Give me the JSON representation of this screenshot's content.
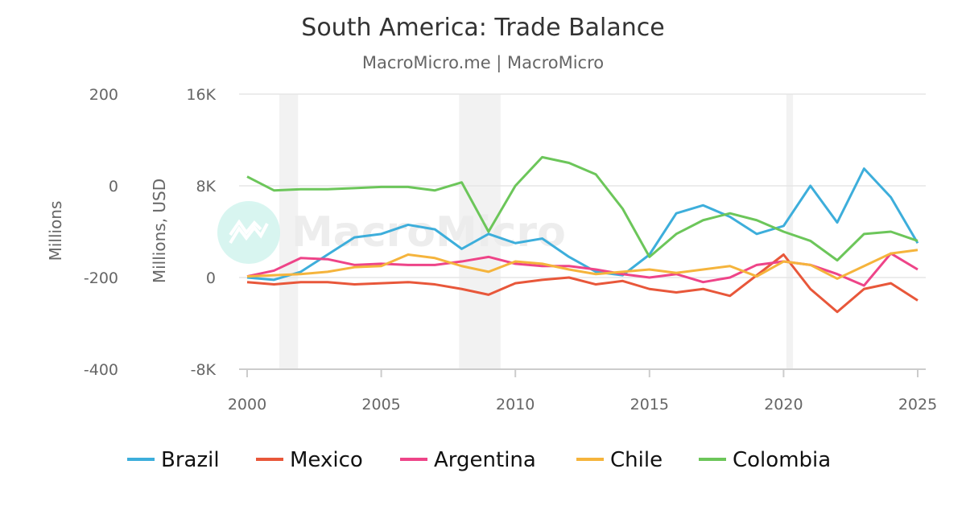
{
  "chart_data": {
    "type": "line",
    "title": "South America: Trade Balance",
    "subtitle": "MacroMicro.me | MacroMicro",
    "watermark": "MacroMicro",
    "x": [
      2000,
      2001,
      2002,
      2003,
      2004,
      2005,
      2006,
      2007,
      2008,
      2009,
      2010,
      2011,
      2012,
      2013,
      2014,
      2015,
      2016,
      2017,
      2018,
      2019,
      2020,
      2021,
      2022,
      2023,
      2024,
      2025
    ],
    "x_ticks": [
      "2000",
      "2005",
      "2010",
      "2015",
      "2020",
      "2025"
    ],
    "x_tick_values": [
      2000,
      2005,
      2010,
      2015,
      2020,
      2025
    ],
    "xlim": [
      2000,
      2025.3
    ],
    "y_axes": [
      {
        "label": "Millions",
        "ticks": [
          "200",
          "0",
          "-200",
          "-400"
        ],
        "tick_values": [
          200,
          0,
          -200,
          -400
        ],
        "ylim": [
          -400,
          200
        ]
      },
      {
        "label": "Millions, USD",
        "ticks": [
          "16K",
          "8K",
          "0",
          "-8K"
        ],
        "tick_values": [
          16000,
          8000,
          0,
          -8000
        ],
        "ylim": [
          -8000,
          16000
        ]
      }
    ],
    "grid": true,
    "legend_position": "bottom",
    "shaded_periods": [
      [
        2001.2,
        2001.9
      ],
      [
        2007.9,
        2009.45
      ],
      [
        2020.1,
        2020.35
      ]
    ],
    "series": [
      {
        "name": "Brazil",
        "color": "#3daedb",
        "values": [
          0,
          -200,
          500,
          2000,
          3500,
          3800,
          4600,
          4200,
          2500,
          3800,
          3000,
          3400,
          1800,
          500,
          200,
          2000,
          5600,
          6300,
          5300,
          3800,
          4500,
          8000,
          4800,
          9500,
          7000,
          3000
        ]
      },
      {
        "name": "Mexico",
        "color": "#e8573a",
        "values": [
          -400,
          -600,
          -400,
          -400,
          -600,
          -500,
          -400,
          -600,
          -1000,
          -1500,
          -500,
          -200,
          0,
          -600,
          -300,
          -1000,
          -1300,
          -1000,
          -1600,
          200,
          2000,
          -1000,
          -3000,
          -1000,
          -500,
          -2000
        ]
      },
      {
        "name": "Argentina",
        "color": "#ee4488",
        "values": [
          100,
          600,
          1700,
          1600,
          1100,
          1200,
          1100,
          1100,
          1400,
          1800,
          1200,
          1000,
          1000,
          700,
          300,
          0,
          300,
          -400,
          0,
          1100,
          1400,
          1100,
          300,
          -700,
          2100,
          700
        ]
      },
      {
        "name": "Chile",
        "color": "#f5b43c",
        "values": [
          100,
          200,
          300,
          500,
          900,
          1000,
          2000,
          1700,
          1000,
          500,
          1400,
          1200,
          700,
          300,
          500,
          700,
          400,
          700,
          1000,
          100,
          1400,
          1100,
          -100,
          1000,
          2100,
          2400
        ]
      },
      {
        "name": "Colombia",
        "color": "#6cc65a",
        "values": [
          8800,
          7600,
          7700,
          7700,
          7800,
          7900,
          7900,
          7600,
          8300,
          4000,
          8000,
          10500,
          10000,
          9000,
          6000,
          1800,
          3800,
          5000,
          5600,
          5000,
          4000,
          3200,
          1500,
          3800,
          4000,
          3200
        ]
      }
    ]
  }
}
